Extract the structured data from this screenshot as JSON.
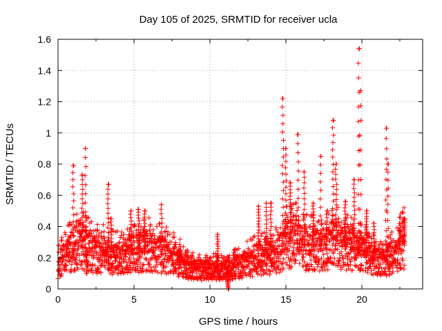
{
  "chart_data": {
    "type": "scatter",
    "title": "Day 105 of 2025, SRMTID for receiver ucla",
    "xlabel": "GPS time / hours",
    "ylabel": "SRMTID / TECUs",
    "xlim": [
      0,
      24
    ],
    "ylim": [
      0,
      1.6
    ],
    "xticks": [
      0,
      5,
      10,
      15,
      20
    ],
    "xtick_labels": [
      "0",
      "5",
      "10",
      "15",
      "20"
    ],
    "yticks": [
      0,
      0.2,
      0.4,
      0.6,
      0.8,
      1.0,
      1.2,
      1.4,
      1.6
    ],
    "ytick_labels": [
      "0",
      "0.2",
      "0.4",
      "0.6",
      "0.8",
      "1",
      "1.2",
      "1.4",
      "1.6"
    ],
    "grid": true,
    "marker": "+",
    "series": [
      {
        "name": "SRMTID",
        "color": "#ff0000",
        "baseline": [
          [
            0.0,
            0.15
          ],
          [
            0.5,
            0.2
          ],
          [
            1.0,
            0.25
          ],
          [
            1.5,
            0.28
          ],
          [
            2.0,
            0.25
          ],
          [
            2.5,
            0.22
          ],
          [
            3.0,
            0.22
          ],
          [
            3.5,
            0.2
          ],
          [
            4.0,
            0.2
          ],
          [
            4.5,
            0.22
          ],
          [
            5.0,
            0.22
          ],
          [
            5.5,
            0.24
          ],
          [
            6.0,
            0.24
          ],
          [
            6.5,
            0.22
          ],
          [
            7.0,
            0.22
          ],
          [
            7.5,
            0.2
          ],
          [
            8.0,
            0.17
          ],
          [
            8.5,
            0.14
          ],
          [
            9.0,
            0.12
          ],
          [
            9.5,
            0.12
          ],
          [
            10.0,
            0.12
          ],
          [
            10.5,
            0.12
          ],
          [
            11.0,
            0.12
          ],
          [
            11.5,
            0.13
          ],
          [
            12.0,
            0.15
          ],
          [
            12.5,
            0.17
          ],
          [
            13.0,
            0.18
          ],
          [
            13.5,
            0.2
          ],
          [
            14.0,
            0.2
          ],
          [
            14.5,
            0.22
          ],
          [
            15.0,
            0.28
          ],
          [
            15.5,
            0.3
          ],
          [
            16.0,
            0.28
          ],
          [
            16.5,
            0.25
          ],
          [
            17.0,
            0.25
          ],
          [
            17.5,
            0.25
          ],
          [
            18.0,
            0.28
          ],
          [
            18.5,
            0.28
          ],
          [
            19.0,
            0.25
          ],
          [
            19.5,
            0.25
          ],
          [
            20.0,
            0.22
          ],
          [
            20.5,
            0.2
          ],
          [
            21.0,
            0.17
          ],
          [
            21.5,
            0.17
          ],
          [
            22.0,
            0.2
          ],
          [
            22.5,
            0.25
          ],
          [
            22.8,
            0.28
          ]
        ],
        "peaks": [
          [
            1.0,
            0.79
          ],
          [
            1.6,
            0.73
          ],
          [
            1.8,
            0.9
          ],
          [
            1.9,
            0.1
          ],
          [
            3.3,
            0.67
          ],
          [
            3.5,
            0.45
          ],
          [
            4.8,
            0.5
          ],
          [
            5.3,
            0.51
          ],
          [
            5.7,
            0.5
          ],
          [
            6.8,
            0.54
          ],
          [
            8.0,
            0.25
          ],
          [
            10.5,
            0.35
          ],
          [
            11.2,
            0.0
          ],
          [
            13.2,
            0.53
          ],
          [
            13.7,
            0.55
          ],
          [
            14.0,
            0.55
          ],
          [
            14.8,
            1.22
          ],
          [
            15.0,
            0.9
          ],
          [
            15.3,
            0.68
          ],
          [
            15.8,
            0.99
          ],
          [
            16.2,
            0.75
          ],
          [
            16.8,
            0.55
          ],
          [
            17.3,
            0.85
          ],
          [
            17.7,
            0.5
          ],
          [
            18.1,
            1.08
          ],
          [
            18.3,
            0.8
          ],
          [
            18.9,
            0.56
          ],
          [
            19.5,
            0.7
          ],
          [
            19.8,
            1.54
          ],
          [
            19.9,
            1.27
          ],
          [
            20.3,
            0.5
          ],
          [
            20.8,
            0.42
          ],
          [
            21.6,
            1.03
          ],
          [
            21.7,
            0.8
          ],
          [
            22.5,
            0.42
          ],
          [
            22.8,
            0.45
          ]
        ]
      }
    ]
  }
}
